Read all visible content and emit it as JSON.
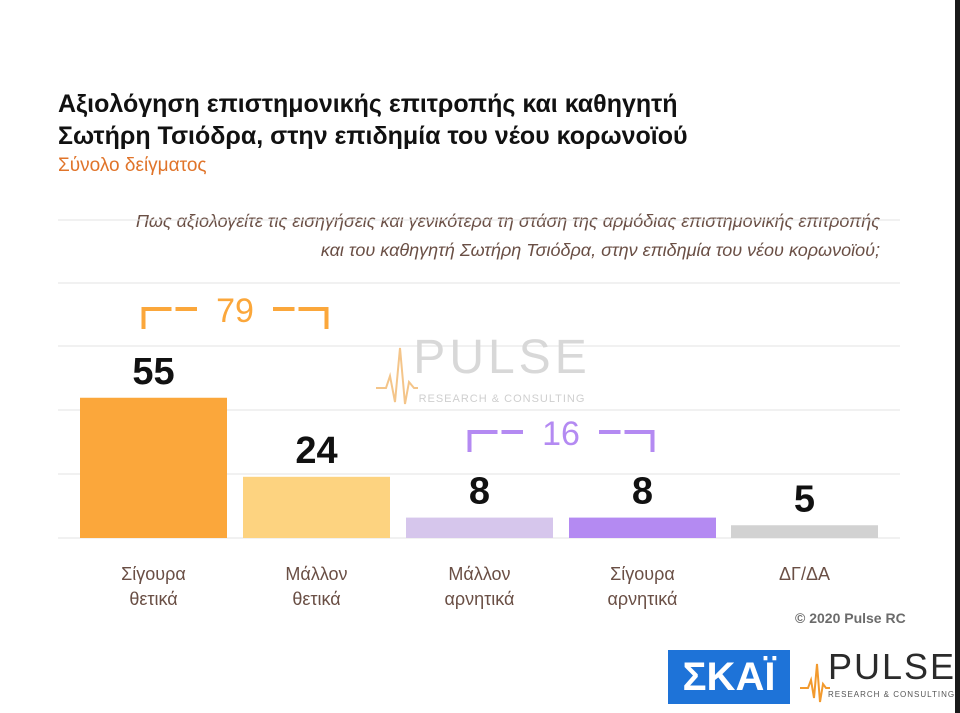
{
  "title": "Αξιολόγηση επιστημονικής επιτροπής και καθηγητή Σωτήρη Τσιόδρα, στην επιδημία του νέου κορωνοϊού",
  "subtitle": "Σύνολο δείγματος",
  "question": "Πως αξιολογείτε τις εισηγήσεις και γενικότερα τη στάση της αρμόδιας επιστημονικής επιτροπής και του καθηγητή Σωτήρη Τσιόδρα, στην επιδημία του νέου κορωνοϊού;",
  "copyright": "© 2020 Pulse RC",
  "logos": {
    "skai": "ΣΚΑΪ",
    "pulse": "PULSE",
    "pulse_sub": "RESEARCH & CONSULTING",
    "pulse_icon": "pulse-wave-icon"
  },
  "watermark": {
    "word": "PULSE",
    "sub": "RESEARCH & CONSULTING"
  },
  "chart_data": {
    "type": "bar",
    "categories": [
      "Σίγουρα θετικά",
      "Μάλλον θετικά",
      "Μάλλον αρνητικά",
      "Σίγουρα αρνητικά",
      "ΔΓ/ΔΑ"
    ],
    "values": [
      55,
      24,
      8,
      8,
      5
    ],
    "colors": [
      "#fba73b",
      "#fdd380",
      "#d6c6ec",
      "#b48af2",
      "#d2d2d2"
    ],
    "ylim": [
      0,
      100
    ],
    "grid": true,
    "brackets": [
      {
        "label": "79",
        "from": 0,
        "to": 1,
        "color": "#fba73b"
      },
      {
        "label": "16",
        "from": 2,
        "to": 3,
        "color": "#b48af2"
      }
    ]
  }
}
